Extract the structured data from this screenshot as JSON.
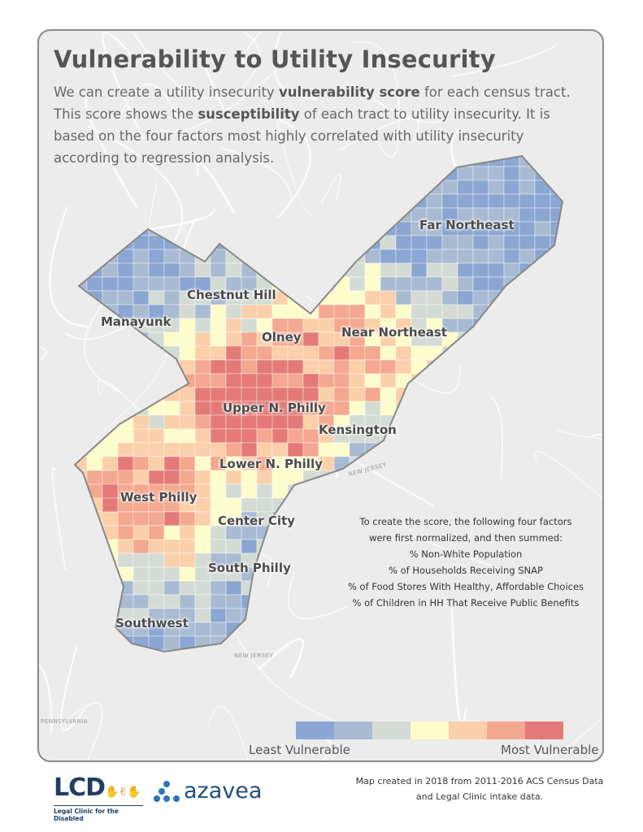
{
  "title": "Vulnerability to Utility Insecurity",
  "description": {
    "p1": "We can create a utility insecurity ",
    "b1": "vulnerability score",
    "p2": " for each census tract. This score shows the ",
    "b2": "susceptibility",
    "p3": " of each tract to utility insecurity. It is based on the four factors most highly correlated with utility insecurity according to regression analysis."
  },
  "neighborhoods": [
    "Far Northeast",
    "Chestnut Hill",
    "Manayunk",
    "Olney",
    "Near Northeast",
    "Upper N. Philly",
    "Kensington",
    "Lower N. Philly",
    "West Philly",
    "Center City",
    "South Philly",
    "Southwest"
  ],
  "state_labels": [
    "NEW JERSEY",
    "NEW JERSEY",
    "PENNSYLVANIA"
  ],
  "factors": {
    "intro1": "To create the score, the following four factors",
    "intro2": "were first normalized, and then summed:",
    "items": [
      "% Non-White Population",
      "% of Households Receiving SNAP",
      "% of Food Stores With Healthy, Affordable Choices",
      "% of Children in HH That Receive Public Benefits"
    ]
  },
  "legend": {
    "colors": [
      "#8ba6d2",
      "#a9bbd3",
      "#d3dbd4",
      "#fdfccb",
      "#fbcfaa",
      "#f4a88f",
      "#e47a78"
    ],
    "low_label": "Least Vulnerable",
    "high_label": "Most Vulnerable"
  },
  "credits": {
    "line1": "Map created in 2018 from 2011-2016 ACS Census Data",
    "line2": "and Legal Clinic intake data."
  },
  "logos": {
    "lcd": "LCD",
    "lcd_full": "Legal Clinic for the Disabled",
    "azavea": "azavea"
  }
}
